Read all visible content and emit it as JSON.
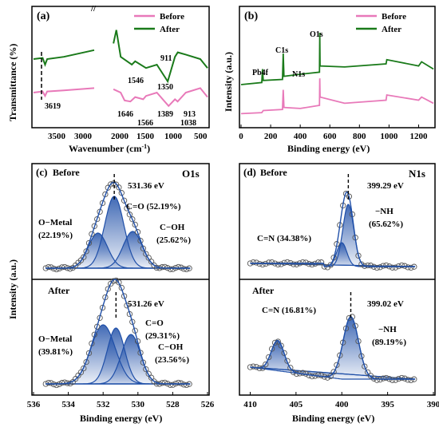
{
  "panels": {
    "a": {
      "tag": "(a)",
      "legend": [
        "Before",
        "After"
      ],
      "xlabel": "Wavenumber (cm",
      "xlabel_sup": "-1",
      "xlabel_end": ")",
      "ylabel": "Transmittance (%)",
      "ticks_left": [
        "3500",
        "3000"
      ],
      "ticks_right": [
        "2000",
        "1500",
        "1000",
        "500"
      ],
      "annotations": [
        "3619",
        "1546",
        "1350",
        "911",
        "1646",
        "1566",
        "1389",
        "913",
        "1038"
      ]
    },
    "b": {
      "tag": "(b)",
      "legend": [
        "Before",
        "After"
      ],
      "xlabel": "Binding energy (eV)",
      "ylabel": "Intensity (a.u.)",
      "ticks": [
        "0",
        "200",
        "400",
        "600",
        "800",
        "1000",
        "1200"
      ],
      "peaks": [
        "Pb4f",
        "C1s",
        "N1s",
        "O1s"
      ]
    },
    "c": {
      "tag": "(c)",
      "title": "O1s",
      "ylabel": "Intensity (a.u.)",
      "xlabel": "Binding energy (eV)",
      "ticks": [
        "536",
        "534",
        "532",
        "530",
        "528",
        "526"
      ],
      "top": {
        "state": "Before",
        "peak": "531.36 eV",
        "comp1": "C=O (52.19%)",
        "comp2a": "O−Metal",
        "comp2b": "(22.19%)",
        "comp3a": "C−OH",
        "comp3b": "(25.62%)"
      },
      "bottom": {
        "state": "After",
        "peak": "531.26 eV",
        "comp1a": "C=O",
        "comp1b": "(29.31%)",
        "comp2a": "O−Metal",
        "comp2b": "(39.81%)",
        "comp3a": "C−OH",
        "comp3b": "(23.56%)"
      }
    },
    "d": {
      "tag": "(d)",
      "title": "N1s",
      "xlabel": "Binding energy (eV)",
      "ticks": [
        "410",
        "405",
        "400",
        "395",
        "390"
      ],
      "top": {
        "state": "Before",
        "peak": "399.29 eV",
        "comp1a": "−NH",
        "comp1b": "(65.62%)",
        "comp2": "C=N (34.38%)"
      },
      "bottom": {
        "state": "After",
        "peak": "399.02 eV",
        "comp1a": "−NH",
        "comp1b": "(89.19%)",
        "comp2": "C=N (16.81%)"
      }
    }
  },
  "colors": {
    "before": "#e879b9",
    "after": "#1a7a1a",
    "fit": "#1f4fa8"
  },
  "chart_data": [
    {
      "type": "line",
      "panel": "a",
      "xlim": [
        4000,
        500
      ],
      "series": [
        {
          "name": "Before",
          "x": [
            4000,
            3700,
            3619,
            3550,
            3000,
            2000,
            1800,
            1700,
            1646,
            1566,
            1500,
            1389,
            1350,
            1200,
            1038,
            950,
            913,
            800,
            600,
            500
          ],
          "y": [
            0.3,
            0.31,
            0.27,
            0.31,
            0.32,
            0.34,
            0.33,
            0.3,
            0.23,
            0.22,
            0.26,
            0.24,
            0.27,
            0.3,
            0.18,
            0.24,
            0.22,
            0.3,
            0.34,
            0.26
          ]
        },
        {
          "name": "After",
          "x": [
            4000,
            3700,
            3619,
            3550,
            3000,
            2000,
            1800,
            1760,
            1700,
            1546,
            1500,
            1350,
            1200,
            1050,
            950,
            911,
            800,
            600,
            500
          ],
          "y": [
            0.6,
            0.61,
            0.55,
            0.6,
            0.62,
            0.68,
            0.74,
            0.86,
            0.62,
            0.55,
            0.58,
            0.52,
            0.55,
            0.4,
            0.62,
            0.66,
            0.64,
            0.6,
            0.52
          ]
        }
      ]
    },
    {
      "type": "line",
      "panel": "b",
      "xlim": [
        0,
        1300
      ],
      "series": [
        {
          "name": "Before",
          "x": [
            0,
            140,
            150,
            280,
            285,
            290,
            400,
            530,
            532,
            534,
            700,
            980,
            985,
            1200,
            1220,
            1300
          ],
          "y": [
            0.12,
            0.13,
            0.15,
            0.16,
            0.35,
            0.18,
            0.17,
            0.2,
            0.46,
            0.28,
            0.22,
            0.25,
            0.3,
            0.25,
            0.28,
            0.22
          ]
        },
        {
          "name": "After",
          "x": [
            0,
            140,
            145,
            150,
            280,
            285,
            290,
            400,
            530,
            532,
            534,
            700,
            980,
            985,
            1200,
            1220,
            1300
          ],
          "y": [
            0.4,
            0.42,
            0.55,
            0.44,
            0.45,
            0.7,
            0.48,
            0.5,
            0.52,
            0.9,
            0.58,
            0.57,
            0.6,
            0.64,
            0.58,
            0.62,
            0.55
          ]
        }
      ]
    },
    {
      "type": "line",
      "panel": "c",
      "xlim": [
        536,
        526
      ],
      "peaks_before": [
        531.36,
        532.3,
        530.3
      ],
      "peaks_after": [
        531.26,
        532.0,
        530.4
      ]
    },
    {
      "type": "line",
      "panel": "d",
      "xlim": [
        411,
        390
      ],
      "peaks_before": [
        399.29,
        400.0
      ],
      "peaks_after": [
        399.02,
        407.0
      ]
    }
  ]
}
